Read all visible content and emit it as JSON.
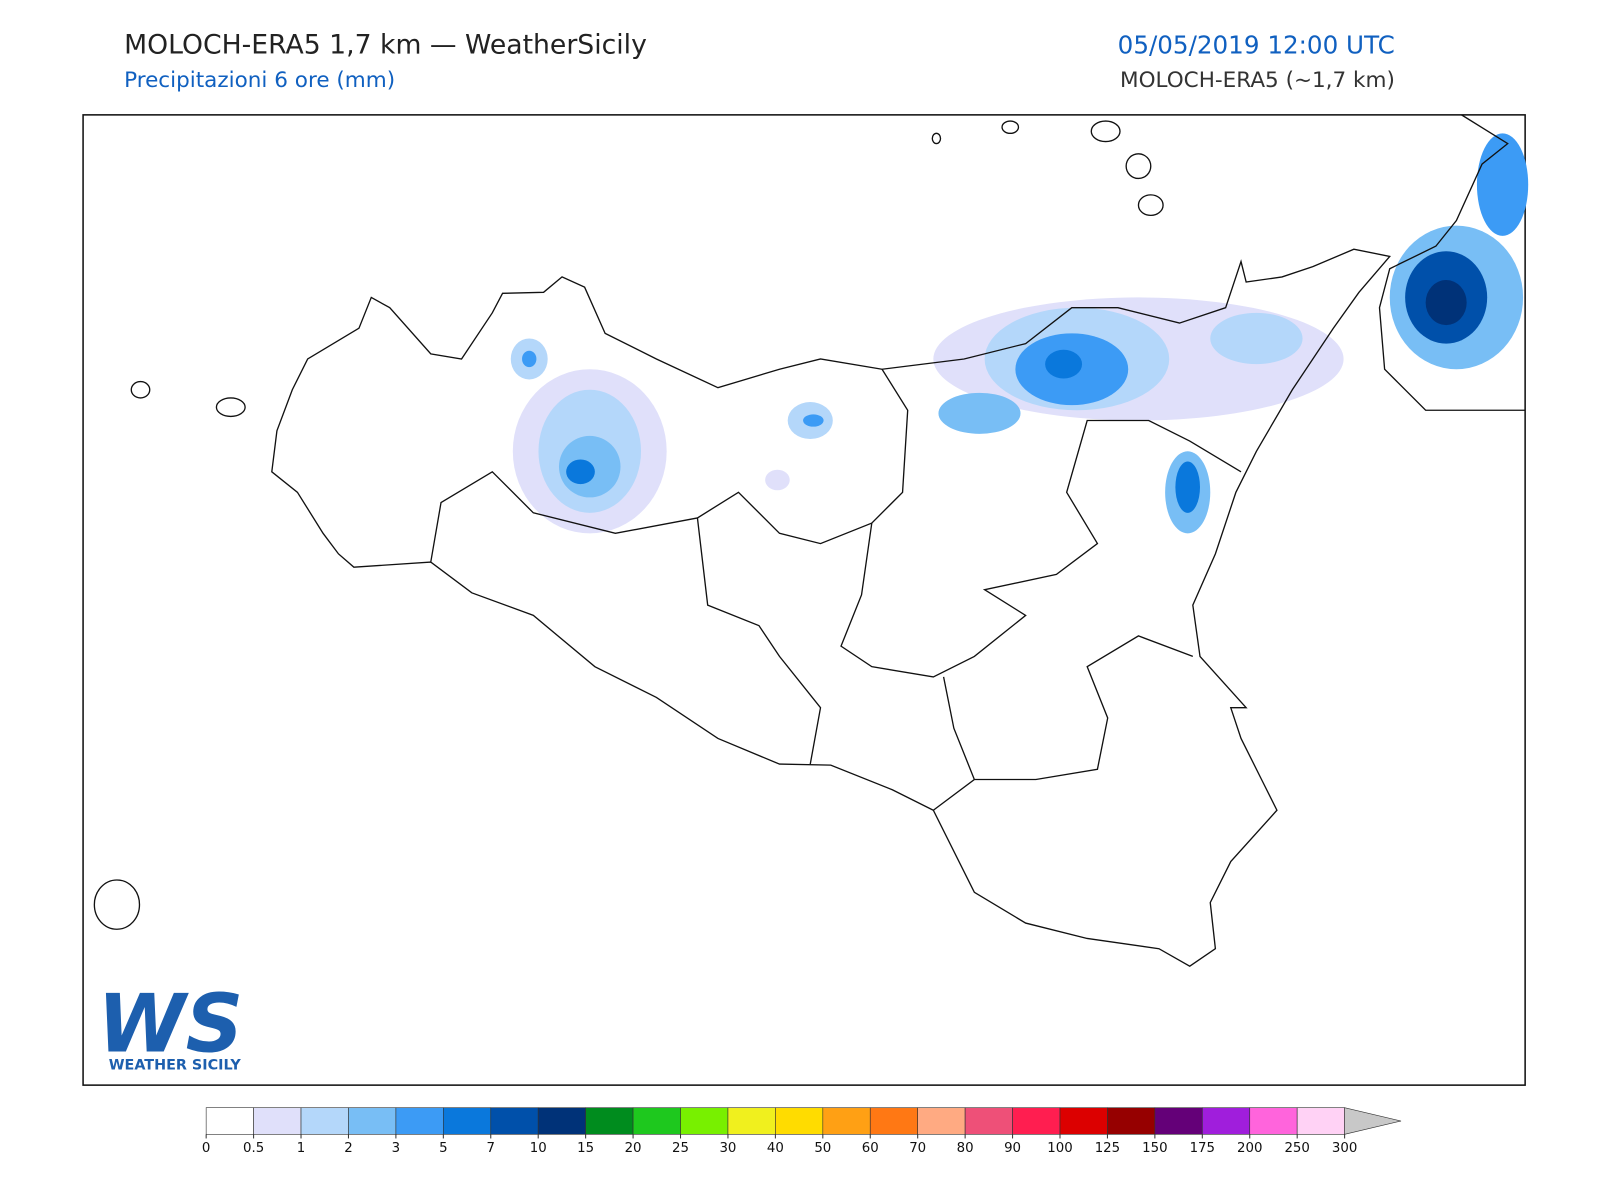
{
  "header": {
    "title": "MOLOCH-ERA5 1,7 km — WeatherSicily",
    "subtitle": "Precipitazioni 6 ore (mm)",
    "datetime": "05/05/2019 12:00 UTC",
    "model": "MOLOCH-ERA5 (~1,7 km)"
  },
  "logo": {
    "mark": "WS",
    "text": "WEATHER SICILY"
  },
  "colorbar": {
    "ticks": [
      0,
      0.5,
      1,
      2,
      3,
      5,
      7,
      10,
      15,
      20,
      25,
      30,
      40,
      50,
      60,
      70,
      80,
      90,
      100,
      125,
      150,
      175,
      200,
      250,
      300
    ],
    "colors": [
      "#ffffff",
      "#e0e0fa",
      "#b4d7fa",
      "#78bef5",
      "#3c9bf5",
      "#0a78dc",
      "#0050aa",
      "#003278",
      "#008c1e",
      "#1ec81e",
      "#78f000",
      "#f0f01e",
      "#ffdc00",
      "#ffa014",
      "#ff7814",
      "#ffaa82",
      "#ee5078",
      "#ff1e50",
      "#dc0000",
      "#960000",
      "#640078",
      "#a01edc",
      "#ff64dc",
      "#ffd2f5"
    ],
    "extend_color": "#c8c8c8"
  }
}
